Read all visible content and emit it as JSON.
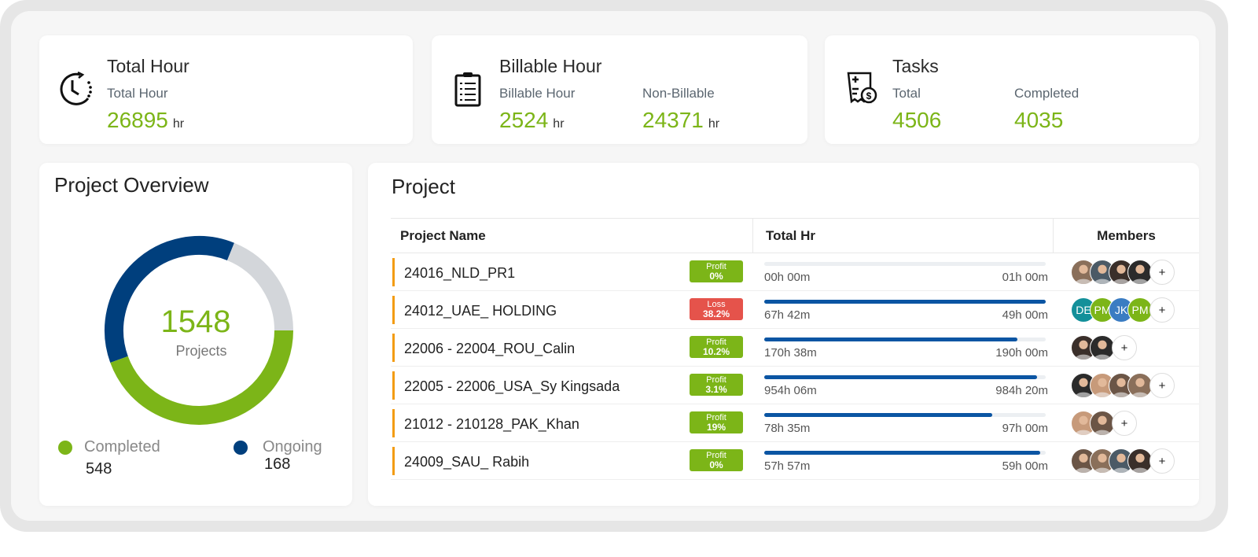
{
  "colors": {
    "accent_green": "#7cb518",
    "navy": "#003f7d",
    "gray": "#d3d6da",
    "loss": "#e5534b",
    "progress": "#0b55a3",
    "row_marker": "#f39c12"
  },
  "cards": [
    {
      "title": "Total Hour",
      "icon": "clock-icon",
      "stats": [
        {
          "label": "Total Hour",
          "value": "26895",
          "unit": "hr"
        }
      ]
    },
    {
      "title": "Billable Hour",
      "icon": "clipboard-icon",
      "stats": [
        {
          "label": "Billable Hour",
          "value": "2524",
          "unit": "hr"
        },
        {
          "label": "Non-Billable",
          "value": "24371",
          "unit": "hr"
        }
      ]
    },
    {
      "title": "Tasks",
      "icon": "invoice-icon",
      "stats": [
        {
          "label": "Total",
          "value": "4506",
          "unit": ""
        },
        {
          "label": "Completed",
          "value": "4035",
          "unit": ""
        }
      ]
    }
  ],
  "overview": {
    "title": "Project Overview",
    "total": "1548",
    "total_label": "Projects",
    "segments": [
      {
        "name": "Ongoing",
        "color": "#003f7d",
        "start_deg": 250,
        "end_deg": 382
      },
      {
        "name": "Remaining",
        "color": "#d3d6da",
        "start_deg": 22,
        "end_deg": 90
      },
      {
        "name": "Completed",
        "color": "#7cb518",
        "start_deg": 90,
        "end_deg": 250
      }
    ],
    "legend": [
      {
        "label": "Completed",
        "value": "548",
        "color": "#7cb518"
      },
      {
        "label": "Ongoing",
        "value": "168",
        "color": "#003f7d"
      }
    ]
  },
  "project": {
    "title": "Project",
    "columns": [
      "Project Name",
      "Total Hr",
      "Members"
    ],
    "rows": [
      {
        "name": "24016_NLD_PR1",
        "status": "Profit",
        "pct": "0%",
        "spent": "00h 00m",
        "budget": "01h 00m",
        "progress": 0,
        "members": [
          "photo",
          "photo",
          "photo",
          "photo"
        ]
      },
      {
        "name": "24012_UAE_ HOLDING",
        "status": "Loss",
        "pct": "38.2%",
        "spent": "67h 42m",
        "budget": "49h 00m",
        "progress": 1,
        "members": [
          "DE",
          "PM",
          "JK",
          "PM"
        ]
      },
      {
        "name": "22006 - 22004_ROU_Calin",
        "status": "Profit",
        "pct": "10.2%",
        "spent": "170h 38m",
        "budget": "190h 00m",
        "progress": 0.9,
        "members": [
          "photo",
          "photo"
        ]
      },
      {
        "name": "22005 - 22006_USA_Sy Kingsada",
        "status": "Profit",
        "pct": "3.1%",
        "spent": "954h 06m",
        "budget": "984h 20m",
        "progress": 0.97,
        "members": [
          "photo",
          "photo",
          "photo",
          "photo"
        ]
      },
      {
        "name": "21012 - 210128_PAK_Khan",
        "status": "Profit",
        "pct": "19%",
        "spent": "78h 35m",
        "budget": "97h 00m",
        "progress": 0.81,
        "members": [
          "photo",
          "photo"
        ]
      },
      {
        "name": "24009_SAU_ Rabih",
        "status": "Profit",
        "pct": "0%",
        "spent": "57h 57m",
        "budget": "59h 00m",
        "progress": 0.98,
        "members": [
          "photo",
          "photo",
          "photo",
          "photo"
        ]
      }
    ],
    "add_member": "+"
  }
}
